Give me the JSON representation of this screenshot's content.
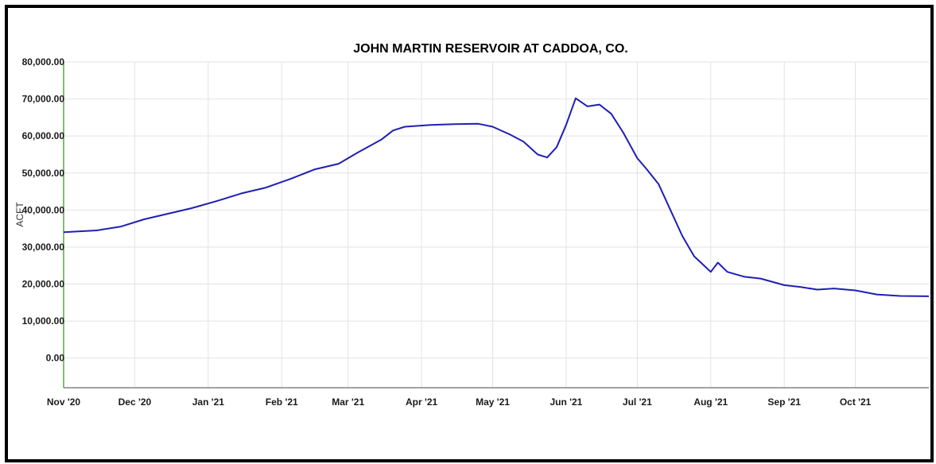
{
  "chart_data": {
    "type": "line",
    "title": "JOHN MARTIN RESERVOIR AT CADDOA, CO.",
    "xlabel": "",
    "ylabel": "ACFT",
    "ylim": [
      -8000,
      80000
    ],
    "yticks": [
      0,
      10000,
      20000,
      30000,
      40000,
      50000,
      60000,
      70000,
      80000
    ],
    "ytick_labels": [
      "0.00",
      "10,000.00",
      "20,000.00",
      "30,000.00",
      "40,000.00",
      "50,000.00",
      "60,000.00",
      "70,000.00",
      "80,000.00"
    ],
    "xlim": [
      "2020-11-01",
      "2021-11-01"
    ],
    "xticks": [
      "2020-11-01",
      "2020-12-01",
      "2021-01-01",
      "2021-02-01",
      "2021-03-01",
      "2021-04-01",
      "2021-05-01",
      "2021-06-01",
      "2021-07-01",
      "2021-08-01",
      "2021-09-01",
      "2021-10-01"
    ],
    "xtick_labels": [
      "Nov '20",
      "Dec '20",
      "Jan '21",
      "Feb '21",
      "Mar '21",
      "Apr '21",
      "May '21",
      "Jun '21",
      "Jul '21",
      "Aug '21",
      "Sep '21",
      "Oct '21"
    ],
    "grid": true,
    "series": [
      {
        "color": "#1f1fb4",
        "x": [
          "2020-11-01",
          "2020-11-15",
          "2020-11-25",
          "2020-12-05",
          "2020-12-15",
          "2020-12-25",
          "2021-01-05",
          "2021-01-15",
          "2021-01-25",
          "2021-02-05",
          "2021-02-15",
          "2021-02-25",
          "2021-03-05",
          "2021-03-15",
          "2021-03-20",
          "2021-03-25",
          "2021-04-05",
          "2021-04-15",
          "2021-04-25",
          "2021-05-01",
          "2021-05-08",
          "2021-05-14",
          "2021-05-20",
          "2021-05-24",
          "2021-05-28",
          "2021-06-01",
          "2021-06-05",
          "2021-06-10",
          "2021-06-15",
          "2021-06-20",
          "2021-06-25",
          "2021-07-01",
          "2021-07-05",
          "2021-07-10",
          "2021-07-15",
          "2021-07-20",
          "2021-07-25",
          "2021-08-01",
          "2021-08-04",
          "2021-08-08",
          "2021-08-15",
          "2021-08-22",
          "2021-09-01",
          "2021-09-08",
          "2021-09-15",
          "2021-09-22",
          "2021-10-01",
          "2021-10-10",
          "2021-10-20",
          "2021-11-01"
        ],
        "values": [
          34000,
          34500,
          35500,
          37500,
          39000,
          40500,
          42500,
          44500,
          46000,
          48500,
          51000,
          52500,
          55500,
          59000,
          61500,
          62500,
          63000,
          63200,
          63300,
          62500,
          60500,
          58500,
          55000,
          54200,
          57000,
          63000,
          70200,
          68000,
          68500,
          66000,
          61000,
          54000,
          51000,
          47000,
          40000,
          33000,
          27500,
          23300,
          25800,
          23300,
          22000,
          21500,
          19700,
          19200,
          18500,
          18800,
          18300,
          17200,
          16800,
          16700
        ]
      }
    ]
  }
}
